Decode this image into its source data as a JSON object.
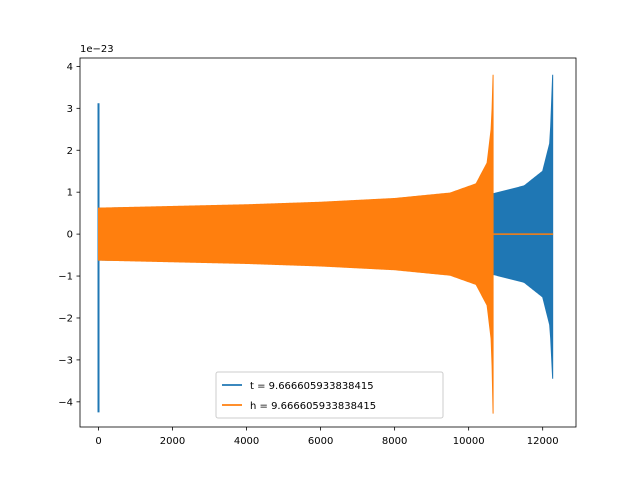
{
  "chart_data": {
    "type": "line",
    "title": "",
    "xlabel": "",
    "ylabel": "",
    "y_offset_label": "1e−23",
    "xlim": [
      -500,
      12900
    ],
    "ylim": [
      -4.6,
      4.2
    ],
    "x_ticks": [
      0,
      2000,
      4000,
      6000,
      8000,
      10000,
      12000
    ],
    "x_tick_labels": [
      "0",
      "2000",
      "4000",
      "6000",
      "8000",
      "10000",
      "12000"
    ],
    "y_ticks": [
      4,
      3,
      2,
      1,
      0,
      -1,
      -2,
      -3,
      -4
    ],
    "y_tick_labels": [
      "4",
      "3",
      "2",
      "1",
      "0",
      "−1",
      "−2",
      "−3",
      "−4"
    ],
    "grid": false,
    "legend_position": "lower center",
    "series": [
      {
        "name": "t = 9.666605933838415",
        "color": "#1f77b4",
        "style": "oscillation-envelope",
        "spike_start": {
          "x": 0,
          "ymax": 3.12,
          "ymin": -4.25
        },
        "envelope": [
          {
            "x": 0,
            "ymax": 0.62,
            "ymin": -0.62
          },
          {
            "x": 2000,
            "ymax": 0.64,
            "ymin": -0.64
          },
          {
            "x": 4000,
            "ymax": 0.66,
            "ymin": -0.66
          },
          {
            "x": 6000,
            "ymax": 0.7,
            "ymin": -0.7
          },
          {
            "x": 8000,
            "ymax": 0.75,
            "ymin": -0.75
          },
          {
            "x": 10000,
            "ymax": 0.84,
            "ymin": -0.84
          },
          {
            "x": 10700,
            "ymax": 0.97,
            "ymin": -0.97
          },
          {
            "x": 11500,
            "ymax": 1.15,
            "ymin": -1.15
          },
          {
            "x": 12000,
            "ymax": 1.5,
            "ymin": -1.5
          },
          {
            "x": 12200,
            "ymax": 2.2,
            "ymin": -2.2
          },
          {
            "x": 12270,
            "ymax": 3.8,
            "ymin": -3.45
          }
        ],
        "tail": {
          "x_start": 12270,
          "x_end": 12280,
          "y": 0
        }
      },
      {
        "name": "h = 9.666605933838415",
        "color": "#ff7f0e",
        "style": "oscillation-envelope",
        "envelope": [
          {
            "x": 0,
            "ymax": 0.62,
            "ymin": -0.62
          },
          {
            "x": 2000,
            "ymax": 0.66,
            "ymin": -0.66
          },
          {
            "x": 4000,
            "ymax": 0.7,
            "ymin": -0.7
          },
          {
            "x": 6000,
            "ymax": 0.76,
            "ymin": -0.76
          },
          {
            "x": 8000,
            "ymax": 0.85,
            "ymin": -0.85
          },
          {
            "x": 9500,
            "ymax": 0.98,
            "ymin": -0.98
          },
          {
            "x": 10200,
            "ymax": 1.2,
            "ymin": -1.2
          },
          {
            "x": 10500,
            "ymax": 1.7,
            "ymin": -1.7
          },
          {
            "x": 10620,
            "ymax": 2.6,
            "ymin": -2.6
          },
          {
            "x": 10660,
            "ymax": 3.8,
            "ymin": -4.28
          }
        ],
        "tail": {
          "x_start": 10660,
          "x_end": 12280,
          "y": 0
        }
      }
    ]
  }
}
